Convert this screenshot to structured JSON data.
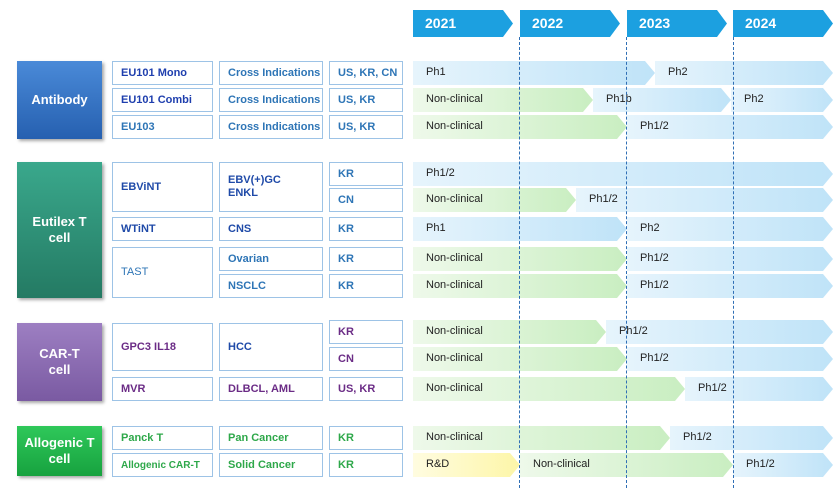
{
  "years": [
    "2021",
    "2022",
    "2023",
    "2024"
  ],
  "categories": {
    "antibody": "Antibody",
    "eutilex": "Eutilex T cell",
    "cart": "CAR-T cell",
    "allogenic": "Allogenic T cell"
  },
  "rows": [
    {
      "drug": "EU101 Mono",
      "indication": "Cross Indications",
      "region": "US, KR, CN",
      "stages": [
        "Ph1",
        "Ph2"
      ]
    },
    {
      "drug": "EU101 Combi",
      "indication": "Cross Indications",
      "region": "US, KR",
      "stages": [
        "Non-clinical",
        "Ph1b",
        "Ph2"
      ]
    },
    {
      "drug": "EU103",
      "indication": "Cross Indications",
      "region": "US, KR",
      "stages": [
        "Non-clinical",
        "Ph1/2"
      ]
    },
    {
      "drug": "EBViNT",
      "indication": "EBV(+)GC\nENKL",
      "region": "KR",
      "stages": [
        "Ph1/2"
      ]
    },
    {
      "region": "CN",
      "stages": [
        "Non-clinical",
        "Ph1/2"
      ]
    },
    {
      "drug": "WTiNT",
      "indication": "CNS",
      "region": "KR",
      "stages": [
        "Ph1",
        "Ph2"
      ]
    },
    {
      "drug": "TAST",
      "indication": "Ovarian",
      "region": "KR",
      "stages": [
        "Non-clinical",
        "Ph1/2"
      ]
    },
    {
      "indication": "NSCLC",
      "region": "KR",
      "stages": [
        "Non-clinical",
        "Ph1/2"
      ]
    },
    {
      "drug": "GPC3 IL18",
      "indication": "HCC",
      "region": "KR",
      "stages": [
        "Non-clinical",
        "Ph1/2"
      ]
    },
    {
      "region": "CN",
      "stages": [
        "Non-clinical",
        "Ph1/2"
      ]
    },
    {
      "drug": "MVR",
      "indication": "DLBCL, AML",
      "region": "US, KR",
      "stages": [
        "Non-clinical",
        "Ph1/2"
      ]
    },
    {
      "drug": "Panck T",
      "indication": "Pan Cancer",
      "region": "KR",
      "stages": [
        "Non-clinical",
        "Ph1/2"
      ]
    },
    {
      "drug": "Allogenic CAR-T",
      "indication": "Solid Cancer",
      "region": "KR",
      "stages": [
        "R&D",
        "Non-clinical",
        "Ph1/2"
      ]
    }
  ],
  "colors": {
    "year_header": "#1ca0e0",
    "antibody": "#2e6fc0",
    "eutilex": "#2e8f76",
    "cart": "#8a6ab0",
    "allogenic": "#1db04a",
    "clinical_fill": "#bfe3f8",
    "nonclinical_fill": "#c9eec1",
    "rnd_fill": "#fdf6a8",
    "antibody_text": "#1f3fae",
    "eutilex_text": "#1f4aa8",
    "cart_text": "#6b2c86",
    "allogenic_text": "#2ea84a"
  }
}
